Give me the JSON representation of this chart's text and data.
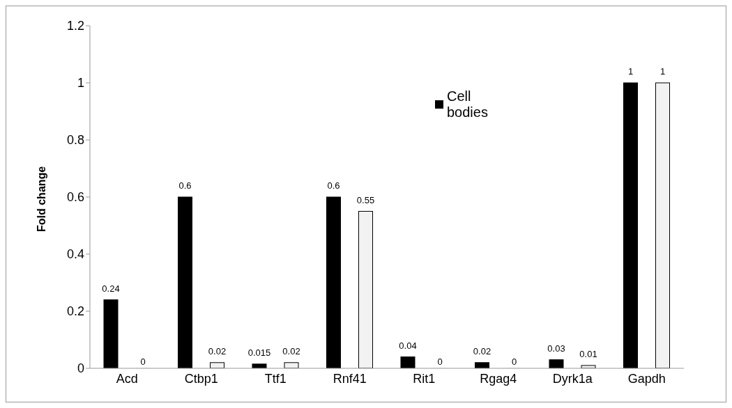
{
  "chart_data": {
    "type": "bar",
    "ylabel": "Fold change",
    "categories": [
      "Acd",
      "Ctbp1",
      "Ttf1",
      "Rnf41",
      "Rit1",
      "Rgag4",
      "Dyrk1a",
      "Gapdh"
    ],
    "series": [
      {
        "name": "Cell bodies",
        "color": "#000000",
        "values": [
          0.24,
          0.6,
          0.015,
          0.6,
          0.04,
          0.02,
          0.03,
          1
        ]
      },
      {
        "color": "#f2f2f2",
        "values": [
          0,
          0.02,
          0.02,
          0.55,
          0,
          0,
          0.01,
          1
        ]
      }
    ],
    "ylim": [
      0,
      1.2
    ],
    "yticks": [
      0,
      0.2,
      0.4,
      0.6,
      0.8,
      1,
      1.2
    ],
    "data_labels": true,
    "grid": false,
    "legend": "top right"
  }
}
